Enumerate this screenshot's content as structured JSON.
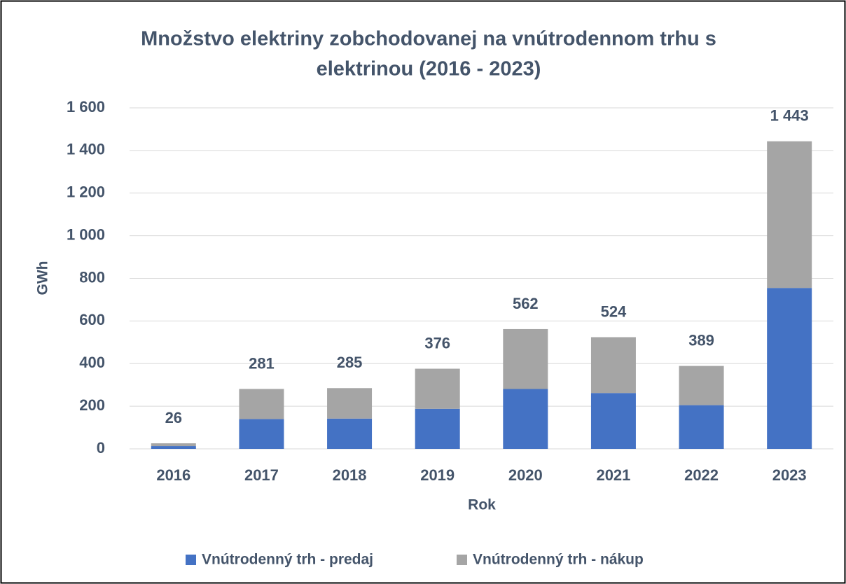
{
  "chart_data": {
    "type": "stacked_bar",
    "title": [
      "Množstvo elektriny zobchodovanej na vnútrodennom trhu s",
      "elektrinou (2016 - 2023)"
    ],
    "x_label": "Rok",
    "y_label": "GWh",
    "categories": [
      "2016",
      "2017",
      "2018",
      "2019",
      "2020",
      "2021",
      "2022",
      "2023"
    ],
    "series": [
      {
        "name": "Vnútrodenný trh - predaj",
        "color": "#4472c4",
        "values": [
          13,
          140,
          142,
          188,
          281,
          262,
          205,
          755
        ]
      },
      {
        "name": "Vnútrodenný trh - nákup",
        "color": "#a5a5a5",
        "values": [
          13,
          141,
          143,
          188,
          281,
          262,
          184,
          688
        ]
      }
    ],
    "totals": [
      26,
      281,
      285,
      376,
      562,
      524,
      389,
      1443
    ],
    "total_labels": [
      "26",
      "281",
      "285",
      "376",
      "562",
      "524",
      "389",
      "1 443"
    ],
    "ylim": [
      0,
      1600
    ],
    "yticks": [
      0,
      200,
      400,
      600,
      800,
      {
        "value": 1000,
        "label": "1 000"
      },
      {
        "value": 1200,
        "label": "1 200"
      },
      {
        "value": 1400,
        "label": "1 400"
      },
      {
        "value": 1600,
        "label": "1 600"
      }
    ],
    "grid": true,
    "legend": "bottom"
  }
}
